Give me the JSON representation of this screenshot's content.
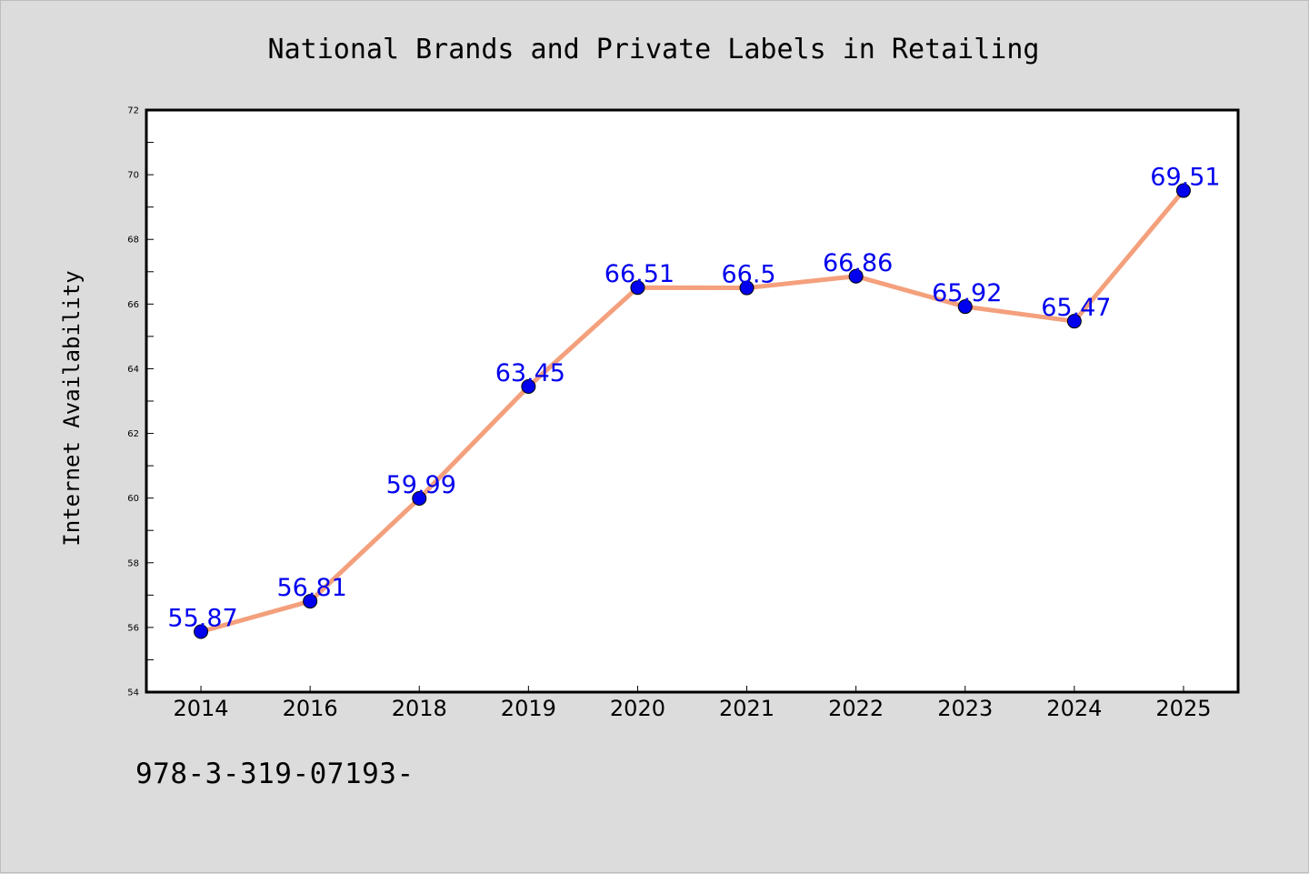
{
  "chart_data": {
    "type": "line",
    "title": "National Brands and Private Labels in Retailing",
    "xlabel": "",
    "ylabel": "Internet Availability",
    "categories": [
      "2014",
      "2016",
      "2018",
      "2019",
      "2020",
      "2021",
      "2022",
      "2023",
      "2024",
      "2025"
    ],
    "series": [
      {
        "values": [
          55.87,
          56.81,
          59.99,
          63.45,
          66.51,
          66.5,
          66.86,
          65.92,
          65.47,
          69.51
        ],
        "line_color": "#f4a07c",
        "marker_color": "#0000ee"
      }
    ],
    "data_labels": [
      "55.87",
      "56.81",
      "59.99",
      "63.45",
      "66.51",
      "66.5",
      "66.86",
      "65.92",
      "65.47",
      "69.51"
    ],
    "ylim": [
      54,
      72
    ],
    "yticks": [
      54,
      56,
      58,
      60,
      62,
      64,
      66,
      68,
      70,
      72
    ],
    "grid": false,
    "legend": "none"
  },
  "footer": {
    "code": "978-3-319-07193-"
  }
}
